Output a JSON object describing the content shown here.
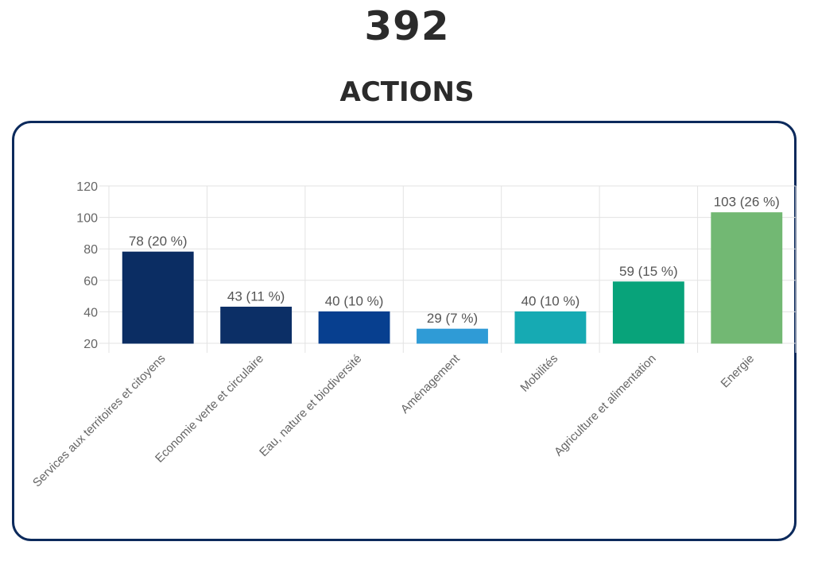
{
  "header": {
    "total": "392",
    "label": "ACTIONS"
  },
  "chart_data": {
    "type": "bar",
    "categories": [
      "Services aux territoires et citoyens",
      "Economie verte et circulaire",
      "Eau, nature et biodiversité",
      "Aménagement",
      "Mobilités",
      "Agriculture et alimentation",
      "Energie"
    ],
    "values": [
      78,
      43,
      40,
      29,
      40,
      59,
      103
    ],
    "data_labels": [
      "78 (20 %)",
      "43 (11 %)",
      "40 (10 %)",
      "29 (7 %)",
      "40 (10 %)",
      "59 (15 %)",
      "103 (26 %)"
    ],
    "colors": [
      "#0b2d63",
      "#0c2f66",
      "#073f8f",
      "#2f9bd6",
      "#16aab3",
      "#08a37a",
      "#72b873"
    ],
    "yticks": [
      20,
      40,
      60,
      80,
      100,
      120
    ],
    "ylim": [
      20,
      120
    ],
    "grid": true
  }
}
